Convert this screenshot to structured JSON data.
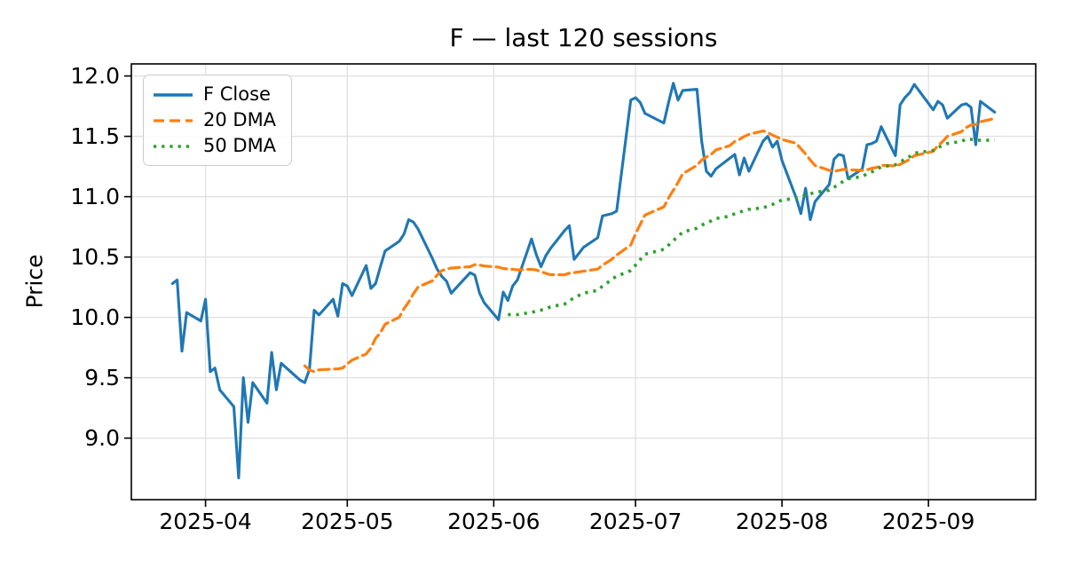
{
  "chart_data": {
    "type": "line",
    "title": "F — last 120 sessions",
    "xlabel": "",
    "ylabel": "Price",
    "grid": true,
    "legend_position": "upper left",
    "ylim": [
      8.49,
      12.1
    ],
    "y_ticks": [
      9.0,
      9.5,
      10.0,
      10.5,
      11.0,
      11.5,
      12.0
    ],
    "y_tick_labels": [
      "9.0",
      "9.5",
      "10.0",
      "10.5",
      "11.0",
      "11.5",
      "12.0"
    ],
    "x_tick_labels": [
      "2025-04",
      "2025-05",
      "2025-06",
      "2025-07",
      "2025-08",
      "2025-09"
    ],
    "sessions": 120,
    "start_date": "2025-03-25",
    "market_holidays": [
      "2025-04-18",
      "2025-05-26",
      "2025-06-19",
      "2025-07-04",
      "2025-09-01"
    ],
    "series": [
      {
        "name": "F Close",
        "color": "#1f77b4",
        "style": "solid",
        "values": [
          10.28,
          10.31,
          9.72,
          10.04,
          9.97,
          10.15,
          9.55,
          9.58,
          9.4,
          9.26,
          8.67,
          9.5,
          9.13,
          9.46,
          9.29,
          9.71,
          9.4,
          9.62,
          9.48,
          9.46,
          9.57,
          10.06,
          10.02,
          10.15,
          10.01,
          10.28,
          10.26,
          10.18,
          10.43,
          10.24,
          10.28,
          10.42,
          10.55,
          10.63,
          10.69,
          10.81,
          10.79,
          10.73,
          10.49,
          10.4,
          10.34,
          10.3,
          10.2,
          10.37,
          10.35,
          10.2,
          10.12,
          9.98,
          10.21,
          10.14,
          10.26,
          10.31,
          10.65,
          10.52,
          10.42,
          10.51,
          10.57,
          10.72,
          10.76,
          10.48,
          10.58,
          10.66,
          10.84,
          10.85,
          10.86,
          10.88,
          11.8,
          11.82,
          11.78,
          11.69,
          11.61,
          11.78,
          11.94,
          11.8,
          11.88,
          11.89,
          11.46,
          11.21,
          11.17,
          11.23,
          11.32,
          11.35,
          11.18,
          11.32,
          11.21,
          11.46,
          11.5,
          11.41,
          11.46,
          11.3,
          10.99,
          10.86,
          11.07,
          10.81,
          10.96,
          11.1,
          11.31,
          11.35,
          11.34,
          11.15,
          11.23,
          11.43,
          11.44,
          11.46,
          11.58,
          11.34,
          11.76,
          11.82,
          11.86,
          11.93,
          11.72,
          11.79,
          11.76,
          11.65,
          11.76,
          11.77,
          11.74,
          11.43,
          11.79,
          11.7
        ]
      },
      {
        "name": "20 DMA",
        "color": "#ff7f0e",
        "style": "dashed",
        "derived": "sma_of_close",
        "window": 20
      },
      {
        "name": "50 DMA",
        "color": "#2ca02c",
        "style": "dotted",
        "derived": "sma_of_close",
        "window": 50
      }
    ]
  }
}
